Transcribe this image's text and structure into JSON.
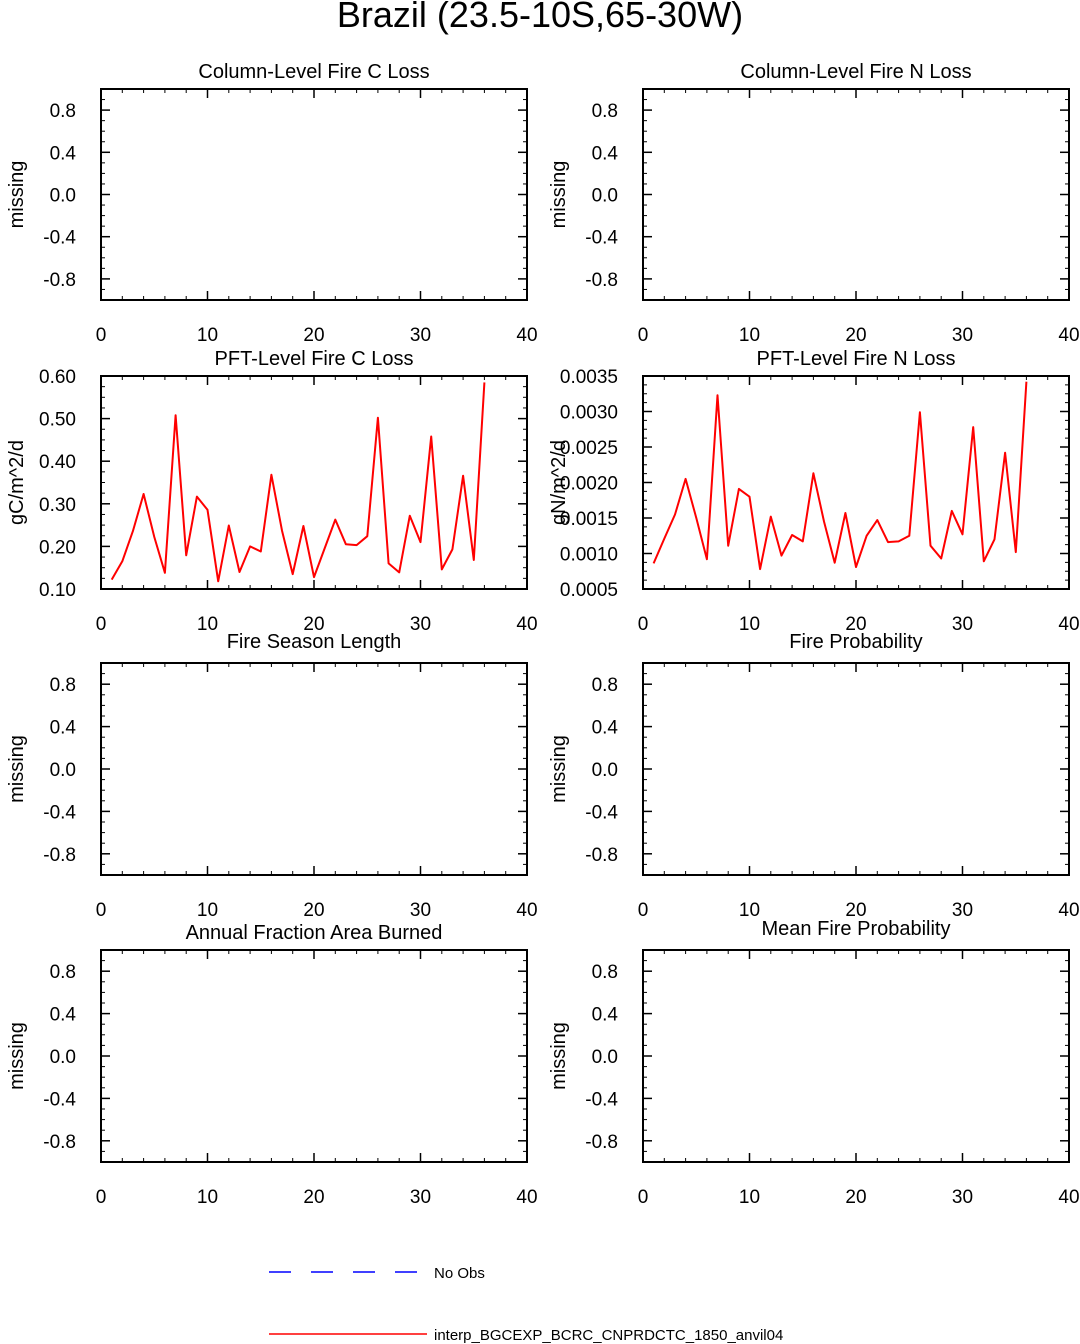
{
  "title": "Brazil (23.5-10S,65-30W)",
  "chart_data": [
    {
      "id": "col-c",
      "type": "line",
      "title": "Column-Level Fire C Loss",
      "ylabel": "missing",
      "xlim": [
        0,
        40
      ],
      "ylim": [
        -1,
        1
      ],
      "xticks": [
        0,
        10,
        20,
        30,
        40
      ],
      "xtick_labels": [
        "0",
        "10",
        "20",
        "30",
        "40"
      ],
      "yticks": [
        0.8,
        0.4,
        0.0,
        -0.4,
        -0.8
      ],
      "ytick_labels": [
        "0.8",
        "0.4",
        "0.0",
        "-0.4",
        "-0.8"
      ],
      "series": []
    },
    {
      "id": "col-n",
      "type": "line",
      "title": "Column-Level Fire N Loss",
      "ylabel": "missing",
      "xlim": [
        0,
        40
      ],
      "ylim": [
        -1,
        1
      ],
      "xticks": [
        0,
        10,
        20,
        30,
        40
      ],
      "xtick_labels": [
        "0",
        "10",
        "20",
        "30",
        "40"
      ],
      "yticks": [
        0.8,
        0.4,
        0.0,
        -0.4,
        -0.8
      ],
      "ytick_labels": [
        "0.8",
        "0.4",
        "0.0",
        "-0.4",
        "-0.8"
      ],
      "series": []
    },
    {
      "id": "pft-c",
      "type": "line",
      "title": "PFT-Level Fire C Loss",
      "ylabel": "gC/m^2/d",
      "xlim": [
        0,
        40
      ],
      "ylim": [
        0.1,
        0.6
      ],
      "xticks": [
        0,
        10,
        20,
        30,
        40
      ],
      "xtick_labels": [
        "0",
        "10",
        "20",
        "30",
        "40"
      ],
      "yticks": [
        0.1,
        0.2,
        0.3,
        0.4,
        0.5,
        0.6
      ],
      "ytick_labels": [
        "0.10",
        "0.20",
        "0.30",
        "0.40",
        "0.50",
        "0.60"
      ],
      "series": [
        {
          "color": "#ff0000",
          "x": [
            1,
            2,
            3,
            4,
            5,
            6,
            7,
            8,
            9,
            10,
            11,
            12,
            13,
            14,
            15,
            16,
            17,
            18,
            19,
            20,
            21,
            22,
            23,
            24,
            25,
            26,
            27,
            28,
            29,
            30,
            31,
            32,
            33,
            34,
            35,
            36
          ],
          "values": [
            0.122,
            0.165,
            0.236,
            0.323,
            0.222,
            0.138,
            0.508,
            0.179,
            0.317,
            0.286,
            0.118,
            0.249,
            0.14,
            0.2,
            0.188,
            0.368,
            0.237,
            0.135,
            0.248,
            0.128,
            0.195,
            0.263,
            0.205,
            0.203,
            0.224,
            0.502,
            0.16,
            0.139,
            0.272,
            0.21,
            0.458,
            0.146,
            0.193,
            0.366,
            0.168,
            0.585
          ]
        }
      ]
    },
    {
      "id": "pft-n",
      "type": "line",
      "title": "PFT-Level Fire N Loss",
      "ylabel": "gN/m^2/d",
      "xlim": [
        0,
        40
      ],
      "ylim": [
        0.0005,
        0.0035
      ],
      "xticks": [
        0,
        10,
        20,
        30,
        40
      ],
      "xtick_labels": [
        "0",
        "10",
        "20",
        "30",
        "40"
      ],
      "yticks": [
        0.0005,
        0.001,
        0.0015,
        0.002,
        0.0025,
        0.003,
        0.0035
      ],
      "ytick_labels": [
        "0.0005",
        "0.0010",
        "0.0015",
        "0.0020",
        "0.0025",
        "0.0030",
        "0.0035"
      ],
      "series": [
        {
          "color": "#ff0000",
          "x": [
            1,
            2,
            3,
            4,
            5,
            6,
            7,
            8,
            9,
            10,
            11,
            12,
            13,
            14,
            15,
            16,
            17,
            18,
            19,
            20,
            21,
            22,
            23,
            24,
            25,
            26,
            27,
            28,
            29,
            30,
            31,
            32,
            33,
            34,
            35,
            36
          ],
          "values": [
            0.00086,
            0.00121,
            0.00155,
            0.00205,
            0.0015,
            0.00092,
            0.00323,
            0.00111,
            0.00191,
            0.0018,
            0.00078,
            0.00152,
            0.00097,
            0.00126,
            0.00117,
            0.00213,
            0.00145,
            0.00087,
            0.00157,
            0.00081,
            0.00125,
            0.00147,
            0.00116,
            0.00117,
            0.00125,
            0.00299,
            0.00111,
            0.00093,
            0.0016,
            0.00127,
            0.00278,
            0.00089,
            0.0012,
            0.00242,
            0.00102,
            0.00342
          ]
        }
      ]
    },
    {
      "id": "season",
      "type": "line",
      "title": "Fire Season Length",
      "ylabel": "missing",
      "xlim": [
        0,
        40
      ],
      "ylim": [
        -1,
        1
      ],
      "xticks": [
        0,
        10,
        20,
        30,
        40
      ],
      "xtick_labels": [
        "0",
        "10",
        "20",
        "30",
        "40"
      ],
      "yticks": [
        0.8,
        0.4,
        0.0,
        -0.4,
        -0.8
      ],
      "ytick_labels": [
        "0.8",
        "0.4",
        "0.0",
        "-0.4",
        "-0.8"
      ],
      "series": []
    },
    {
      "id": "prob",
      "type": "line",
      "title": "Fire Probability",
      "ylabel": "missing",
      "xlim": [
        0,
        40
      ],
      "ylim": [
        -1,
        1
      ],
      "xticks": [
        0,
        10,
        20,
        30,
        40
      ],
      "xtick_labels": [
        "0",
        "10",
        "20",
        "30",
        "40"
      ],
      "yticks": [
        0.8,
        0.4,
        0.0,
        -0.4,
        -0.8
      ],
      "ytick_labels": [
        "0.8",
        "0.4",
        "0.0",
        "-0.4",
        "-0.8"
      ],
      "series": []
    },
    {
      "id": "area",
      "type": "line",
      "title": "Annual Fraction Area Burned",
      "ylabel": "missing",
      "xlim": [
        0,
        40
      ],
      "ylim": [
        -1,
        1
      ],
      "xticks": [
        0,
        10,
        20,
        30,
        40
      ],
      "xtick_labels": [
        "0",
        "10",
        "20",
        "30",
        "40"
      ],
      "yticks": [
        0.8,
        0.4,
        0.0,
        -0.4,
        -0.8
      ],
      "ytick_labels": [
        "0.8",
        "0.4",
        "0.0",
        "-0.4",
        "-0.8"
      ],
      "series": []
    },
    {
      "id": "meanprob",
      "type": "line",
      "title": "Mean Fire Probability",
      "ylabel": "missing",
      "xlim": [
        0,
        40
      ],
      "ylim": [
        -1,
        1
      ],
      "xticks": [
        0,
        10,
        20,
        30,
        40
      ],
      "xtick_labels": [
        "0",
        "10",
        "20",
        "30",
        "40"
      ],
      "yticks": [
        0.8,
        0.4,
        0.0,
        -0.4,
        -0.8
      ],
      "ytick_labels": [
        "0.8",
        "0.4",
        "0.0",
        "-0.4",
        "-0.8"
      ],
      "series": []
    }
  ],
  "legend": [
    {
      "label": "No Obs",
      "color": "#0000ff",
      "style": "dashed"
    },
    {
      "label": "interp_BGCEXP_BCRC_CNPRDCTC_1850_anvil04",
      "color": "#ff0000",
      "style": "solid"
    }
  ]
}
